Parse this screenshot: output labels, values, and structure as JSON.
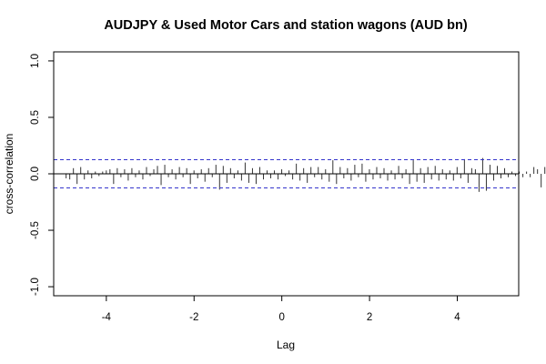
{
  "chart_data": {
    "type": "bar",
    "title": "AUDJPY & Used Motor Cars and station wagons (AUD bn)",
    "xlabel": "Lag",
    "ylabel": "cross-correlation",
    "xlim": [
      -5.2,
      5.4
    ],
    "ylim": [
      -1.08,
      1.08
    ],
    "xticks": [
      -4,
      -2,
      0,
      2,
      4
    ],
    "yticks": [
      -1.0,
      -0.5,
      0.0,
      0.5,
      1.0
    ],
    "confidence_bound": 0.125,
    "lag_step": 0.0833,
    "lags_start": -4.917,
    "values": [
      -0.04,
      -0.05,
      0.05,
      -0.09,
      0.06,
      -0.05,
      0.03,
      -0.04,
      0.02,
      -0.02,
      0.02,
      0.03,
      0.04,
      -0.09,
      0.05,
      -0.03,
      0.04,
      -0.06,
      0.05,
      -0.03,
      0.03,
      -0.05,
      0.06,
      -0.02,
      0.04,
      0.07,
      -0.1,
      0.08,
      -0.03,
      0.04,
      -0.05,
      0.06,
      -0.03,
      0.05,
      -0.09,
      0.03,
      -0.04,
      0.04,
      -0.07,
      0.05,
      -0.03,
      0.08,
      -0.14,
      0.07,
      -0.08,
      0.05,
      -0.04,
      0.03,
      -0.06,
      0.1,
      -0.08,
      0.05,
      -0.09,
      0.06,
      -0.05,
      0.03,
      -0.04,
      0.03,
      -0.05,
      0.04,
      -0.02,
      0.03,
      -0.05,
      0.09,
      -0.06,
      0.05,
      -0.08,
      0.06,
      -0.03,
      0.06,
      -0.05,
      0.04,
      -0.07,
      0.12,
      -0.09,
      0.06,
      -0.04,
      0.05,
      -0.06,
      0.08,
      -0.03,
      0.09,
      -0.07,
      0.04,
      -0.05,
      0.06,
      -0.04,
      0.05,
      -0.06,
      0.03,
      -0.05,
      0.07,
      -0.04,
      0.04,
      -0.09,
      0.12,
      -0.07,
      0.05,
      -0.08,
      0.06,
      -0.05,
      0.07,
      -0.06,
      0.04,
      -0.05,
      0.03,
      -0.06,
      0.06,
      -0.04,
      0.13,
      -0.08,
      0.05,
      0.04,
      -0.16,
      0.14,
      -0.15,
      0.08,
      -0.06,
      0.07,
      -0.04,
      0.05,
      -0.03,
      0.02,
      -0.02,
      0.02,
      -0.03,
      0.02,
      -0.03,
      0.06,
      0.04,
      -0.12,
      0.06,
      0.13,
      -0.1
    ],
    "grid": false,
    "colors": {
      "bars": "#333333",
      "zero_line": "#000000",
      "confidence_lines": "#3333cc",
      "frame": "#000000"
    }
  }
}
